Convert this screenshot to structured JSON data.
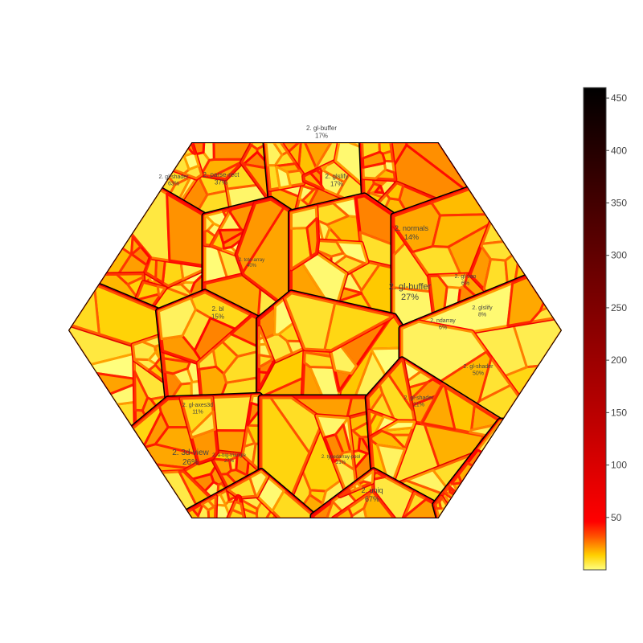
{
  "chart_data": {
    "type": "voronoi-treemap",
    "colorscale": {
      "name": "hot-reversed",
      "range": [
        0,
        460
      ],
      "ticks": [
        50,
        100,
        150,
        200,
        250,
        300,
        350,
        400,
        450
      ],
      "stops": [
        {
          "t": 0.0,
          "color": "#ffff80"
        },
        {
          "t": 0.03,
          "color": "#ffd000"
        },
        {
          "t": 0.07,
          "color": "#ff5000"
        },
        {
          "t": 0.1,
          "color": "#ff0000"
        },
        {
          "t": 0.3,
          "color": "#c00000"
        },
        {
          "t": 0.6,
          "color": "#700000"
        },
        {
          "t": 1.0,
          "color": "#000000"
        }
      ]
    },
    "labeled_cells": [
      {
        "label": "2. gl-buffer",
        "pct": "27%",
        "value": 14
      },
      {
        "label": "2. 3d-view",
        "pct": "26%",
        "value": 12
      },
      {
        "label": "2. uniq",
        "pct": "67%",
        "value": 6
      },
      {
        "label": "2. parse-rect",
        "pct": "37%",
        "value": 10
      },
      {
        "label": "2. gl-buffer",
        "pct": "17%",
        "value": 9
      },
      {
        "label": "2. glslify",
        "pct": "17%",
        "value": 9
      },
      {
        "label": "2. gl-shader",
        "pct": "63%",
        "value": 5
      },
      {
        "label": "2. normals",
        "pct": "14%",
        "value": 16
      },
      {
        "label": "2. bl",
        "pct": "15%",
        "value": 18
      },
      {
        "label": "2. glslify",
        "pct": "8%",
        "value": 30
      },
      {
        "label": "2. gl-vao",
        "pct": "6%",
        "value": 35
      },
      {
        "label": "2. gl-axes3d",
        "pct": "11%",
        "value": 25
      },
      {
        "label": "2. gl-shader",
        "pct": "50%",
        "value": 6
      },
      {
        "label": "2. gl-shader",
        "pct": "21%",
        "value": 12
      },
      {
        "label": "2. ndarray",
        "pct": "6%",
        "value": 14
      },
      {
        "label": "2. typedarray-pool",
        "pct": "21%",
        "value": 10
      },
      {
        "label": "2. tote-array",
        "pct": "40%",
        "value": 7
      },
      {
        "label": "2. a-big-triangle",
        "pct": "27%",
        "value": 9
      }
    ]
  }
}
